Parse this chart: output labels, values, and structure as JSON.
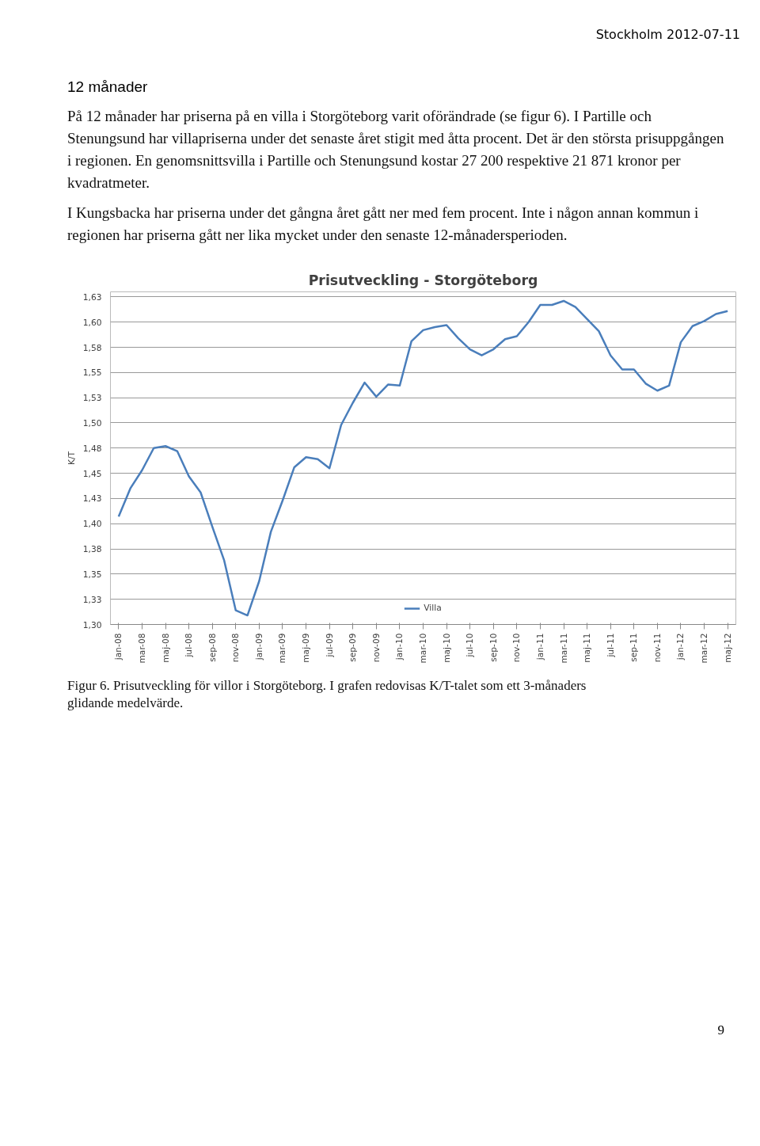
{
  "chart_data": {
    "type": "line",
    "title": "Prisutveckling - Storgöteborg",
    "ylabel": "K/T",
    "annotations": [
      "Stockholm 2012-07-11",
      "12 månader",
      "På 12 månader har priserna på en villa i Storgöteborg varit oförändrade (se figur 6). I Partille och Stenungsund har villapriserna under det senaste året stigit med åtta procent. Det är den största prisuppgången i regionen. En genomsnittsvilla i Partille och Stenungsund kostar 27 200 respektive 21 871 kronor per kvadratmeter.",
      "I Kungsbacka har priserna under det gångna året gått ner med fem procent. Inte i någon annan kommun i regionen har priserna gått ner lika mycket under den senaste 12-månadersperioden.",
      "Figur 6. Prisutveckling för villor i Storgöteborg. I grafen redovisas K/T-talet som ett 3-månaders glidande medelvärde.",
      "9"
    ],
    "categories": [
      "jan-08",
      null,
      "mar-08",
      null,
      "maj-08",
      null,
      "jul-08",
      null,
      "sep-08",
      null,
      "nov-08",
      null,
      "jan-09",
      null,
      "mar-09",
      null,
      "maj-09",
      null,
      "jul-09",
      null,
      "sep-09",
      null,
      "nov-09",
      null,
      "jan-10",
      null,
      "mar-10",
      null,
      "maj-10",
      null,
      "jul-10",
      null,
      "sep-10",
      null,
      "nov-10",
      null,
      "jan-11",
      null,
      "mar-11",
      null,
      "maj-11",
      null,
      "jul-11",
      null,
      "sep-11",
      null,
      "nov-11",
      null,
      "jan-12",
      null,
      "mar-12",
      null,
      "maj-12"
    ],
    "series": [
      {
        "name": "Villa",
        "color": "#4a7ebb",
        "values": [
          1.407,
          1.435,
          1.453,
          1.475,
          1.477,
          1.472,
          1.447,
          1.431,
          1.397,
          1.364,
          1.314,
          1.309,
          1.343,
          1.392,
          1.423,
          1.456,
          1.466,
          1.464,
          1.455,
          1.498,
          1.52,
          1.54,
          1.526,
          1.538,
          1.537,
          1.581,
          1.592,
          1.595,
          1.597,
          1.584,
          1.573,
          1.567,
          1.573,
          1.583,
          1.586,
          1.6,
          1.617,
          1.617,
          1.621,
          1.615,
          1.603,
          1.591,
          1.567,
          1.553,
          1.553,
          1.539,
          1.532,
          1.537,
          1.58,
          1.596,
          1.601,
          1.608,
          1.611
        ]
      }
    ],
    "ylim": [
      1.3,
      1.63
    ],
    "yticks": [
      {
        "value": 1.3,
        "label": "1,30"
      },
      {
        "value": 1.325,
        "label": "1,33"
      },
      {
        "value": 1.35,
        "label": "1,35"
      },
      {
        "value": 1.375,
        "label": "1,38"
      },
      {
        "value": 1.4,
        "label": "1,40"
      },
      {
        "value": 1.425,
        "label": "1,43"
      },
      {
        "value": 1.45,
        "label": "1,45"
      },
      {
        "value": 1.475,
        "label": "1,48"
      },
      {
        "value": 1.5,
        "label": "1,50"
      },
      {
        "value": 1.525,
        "label": "1,53"
      },
      {
        "value": 1.55,
        "label": "1,55"
      },
      {
        "value": 1.575,
        "label": "1,58"
      },
      {
        "value": 1.6,
        "label": "1,60"
      },
      {
        "value": 1.625,
        "label": "1,63"
      }
    ],
    "grid": "y",
    "legend": "bottom",
    "marker": "none",
    "line_style": "solid"
  }
}
